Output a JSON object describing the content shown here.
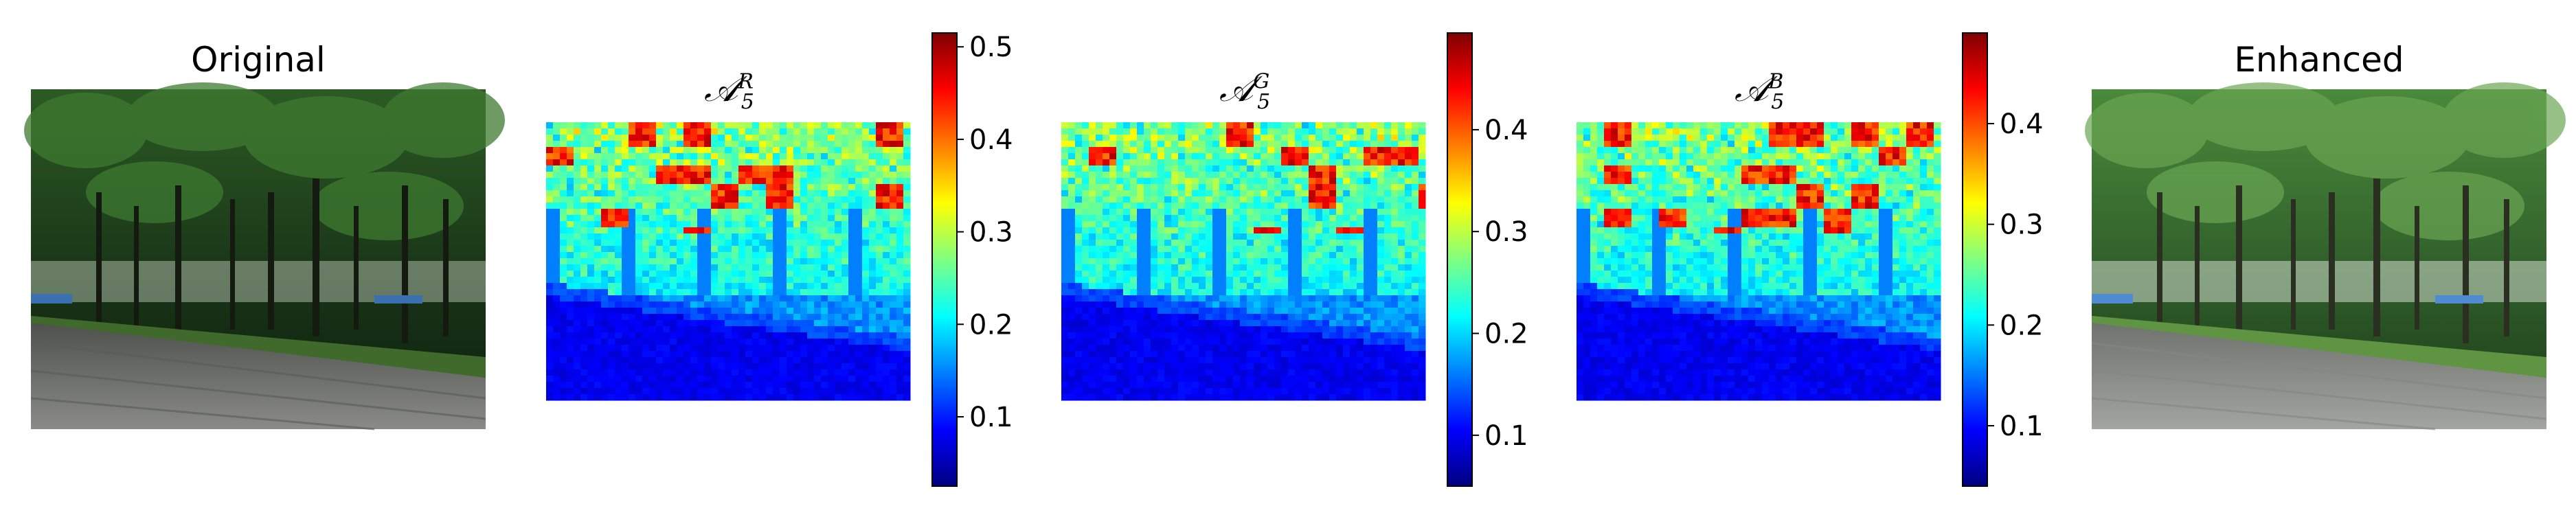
{
  "panels": {
    "original": {
      "title": "Original"
    },
    "map_r": {
      "title_base": "𝒜",
      "title_sub": "5",
      "title_sup": "R",
      "colorbar_ticks": [
        0.1,
        0.2,
        0.3,
        0.4,
        0.5
      ],
      "colorbar_range": [
        0.025,
        0.515
      ]
    },
    "map_g": {
      "title_base": "𝒜",
      "title_sub": "5",
      "title_sup": "G",
      "colorbar_ticks": [
        0.1,
        0.2,
        0.3,
        0.4
      ],
      "colorbar_range": [
        0.05,
        0.495
      ]
    },
    "map_b": {
      "title_base": "𝒜",
      "title_sub": "5",
      "title_sup": "B",
      "colorbar_ticks": [
        0.1,
        0.2,
        0.3,
        0.4
      ],
      "colorbar_range": [
        0.04,
        0.49
      ]
    },
    "enhanced": {
      "title": "Enhanced"
    }
  },
  "colors": {
    "jet": [
      "#00007f",
      "#0000ff",
      "#007fff",
      "#00ffff",
      "#7fff7f",
      "#ffff00",
      "#ff7f00",
      "#ff0000",
      "#7f0000"
    ],
    "park_sky": "#c9d6c4",
    "park_tree_dark": "#1d3a1a",
    "park_tree_mid": "#2f5f2a",
    "park_grass": "#4f7a36",
    "park_path": "#6e7069"
  }
}
